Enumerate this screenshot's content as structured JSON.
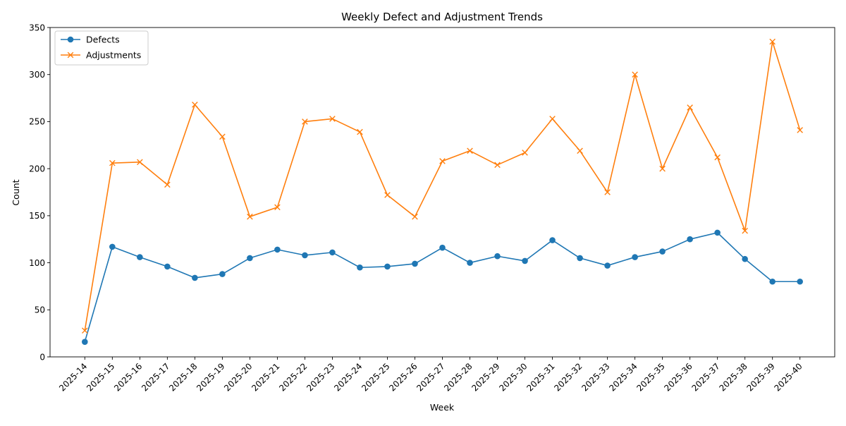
{
  "chart_data": {
    "type": "line",
    "title": "Weekly Defect and Adjustment Trends",
    "xlabel": "Week",
    "ylabel": "Count",
    "categories": [
      "2025-14",
      "2025-15",
      "2025-16",
      "2025-17",
      "2025-18",
      "2025-19",
      "2025-20",
      "2025-21",
      "2025-22",
      "2025-23",
      "2025-24",
      "2025-25",
      "2025-26",
      "2025-27",
      "2025-28",
      "2025-29",
      "2025-30",
      "2025-31",
      "2025-32",
      "2025-33",
      "2025-34",
      "2025-35",
      "2025-36",
      "2025-37",
      "2025-38",
      "2025-39",
      "2025-40"
    ],
    "ylim": [
      0,
      350
    ],
    "yticks": [
      0,
      50,
      100,
      150,
      200,
      250,
      300,
      350
    ],
    "grid": false,
    "legend_position": "top-left",
    "series": [
      {
        "name": "Defects",
        "marker": "circle",
        "color": "#1f77b4",
        "values": [
          16,
          117,
          106,
          96,
          84,
          88,
          105,
          114,
          108,
          111,
          95,
          96,
          99,
          116,
          100,
          107,
          102,
          124,
          105,
          97,
          106,
          112,
          125,
          132,
          104,
          80,
          80
        ]
      },
      {
        "name": "Adjustments",
        "marker": "x",
        "color": "#ff7f0e",
        "values": [
          28,
          206,
          207,
          183,
          268,
          234,
          149,
          159,
          250,
          253,
          239,
          172,
          149,
          208,
          219,
          204,
          217,
          253,
          219,
          175,
          300,
          200,
          265,
          212,
          134,
          335,
          241
        ]
      }
    ]
  }
}
